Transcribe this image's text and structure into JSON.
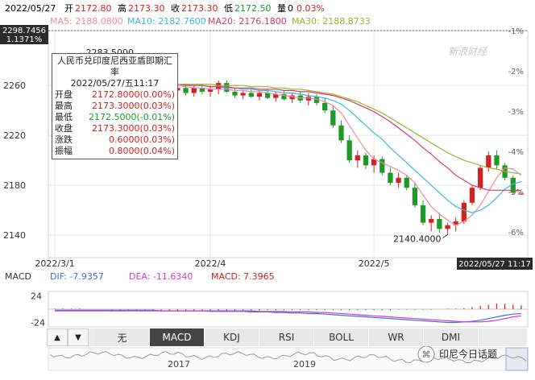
{
  "header": {
    "date": "2022/05/27",
    "open_label": "开",
    "open": "2172.80",
    "high_label": "高",
    "high": "2173.30",
    "close_label": "收",
    "close": "2173.30",
    "low_label": "低",
    "low": "2172.50",
    "volume_label": "量",
    "volume": "0",
    "change_pct": "0.03%"
  },
  "ma_legend": [
    {
      "label": "MA5: 2188.0800",
      "color": "#f08a9c"
    },
    {
      "label": "MA10: 2182.7600",
      "color": "#3cb8d8"
    },
    {
      "label": "MA20: 2176.1800",
      "color": "#d23a6e"
    },
    {
      "label": "MA30: 2188.8733",
      "color": "#9ab52a"
    }
  ],
  "crosshair": {
    "price_tag": "2298.7456",
    "pct_tag": "1.1371%",
    "date_tag": "2022/05/27 11:17"
  },
  "watermark": "新浪财经",
  "tooltip": {
    "title": "人民币兑印度尼西亚盾即期汇率",
    "datetime": "2022/05/27/五11:17",
    "rows": [
      {
        "label": "开盘",
        "value": "2172.8000(0.00%)",
        "color": "#d32020"
      },
      {
        "label": "最高",
        "value": "2173.3000(0.03%)",
        "color": "#d32020"
      },
      {
        "label": "最低",
        "value": "2172.5000(-0.01%)",
        "color": "#1f9a2a"
      },
      {
        "label": "收盘",
        "value": "2173.3000(0.03%)",
        "color": "#d32020"
      },
      {
        "label": "涨跌",
        "value": "0.6000(0.03%)",
        "color": "#d32020"
      },
      {
        "label": "振幅",
        "value": "0.8000(0.04%)",
        "color": "#d32020"
      }
    ]
  },
  "macd_header": {
    "name": "MACD",
    "dif": "DIF: -7.9357",
    "dea": "DEA: -11.6340",
    "macd": "MACD: 7.3965",
    "dif_color": "#3a6fd8",
    "dea_color": "#d838c8",
    "macd_color": "#d32020"
  },
  "tabs": {
    "up_arrow": "▲",
    "down_arrow": "▼",
    "items": [
      {
        "label": "无",
        "active": false
      },
      {
        "label": "MACD",
        "active": true
      },
      {
        "label": "KDJ",
        "active": false
      },
      {
        "label": "RSI",
        "active": false
      },
      {
        "label": "BOLL",
        "active": false
      },
      {
        "label": "WR",
        "active": false
      },
      {
        "label": "DMI",
        "active": false
      }
    ]
  },
  "overview": {
    "year_labels": [
      "2017",
      "2019"
    ],
    "brand": "印尼今日话题"
  },
  "colors": {
    "up": "#d32020",
    "down": "#1f9a2a",
    "grid": "#e6e6e6",
    "axis_text": "#333333"
  },
  "chart_data": [
    {
      "type": "candlestick",
      "title": "人民币兑印度尼西亚盾即期汇率",
      "x_tick_labels": [
        "2022/3/1",
        "2022/4",
        "2022/5"
      ],
      "y_ticks": [
        2140,
        2180,
        2220,
        2260
      ],
      "y_right_ticks": [
        "-1%",
        "-2%",
        "-3%",
        "-4%",
        "-5%",
        "-6%"
      ],
      "ylim": [
        2122,
        2304
      ],
      "annotations": [
        {
          "label": "2283.5000",
          "value": 2283.5
        },
        {
          "label": "2140.4000",
          "value": 2140.4
        }
      ],
      "grid": true,
      "candles": [
        {
          "o": 2268.0,
          "h": 2276.0,
          "l": 2262.0,
          "c": 2273.0
        },
        {
          "o": 2273.0,
          "h": 2279.0,
          "l": 2268.0,
          "c": 2271.0
        },
        {
          "o": 2271.0,
          "h": 2276.0,
          "l": 2266.0,
          "c": 2274.0
        },
        {
          "o": 2274.0,
          "h": 2283.5,
          "l": 2272.0,
          "c": 2279.0
        },
        {
          "o": 2279.0,
          "h": 2281.0,
          "l": 2270.0,
          "c": 2272.0
        },
        {
          "o": 2272.0,
          "h": 2275.0,
          "l": 2264.0,
          "c": 2266.0
        },
        {
          "o": 2266.0,
          "h": 2269.0,
          "l": 2258.0,
          "c": 2260.0
        },
        {
          "o": 2260.0,
          "h": 2266.0,
          "l": 2256.0,
          "c": 2263.0
        },
        {
          "o": 2263.0,
          "h": 2266.0,
          "l": 2256.0,
          "c": 2258.0
        },
        {
          "o": 2258.0,
          "h": 2263.0,
          "l": 2253.0,
          "c": 2261.0
        },
        {
          "o": 2261.0,
          "h": 2264.0,
          "l": 2255.0,
          "c": 2257.0
        },
        {
          "o": 2257.0,
          "h": 2262.0,
          "l": 2252.0,
          "c": 2260.0
        },
        {
          "o": 2260.0,
          "h": 2263.0,
          "l": 2255.0,
          "c": 2256.0
        },
        {
          "o": 2256.0,
          "h": 2261.0,
          "l": 2252.0,
          "c": 2259.0
        },
        {
          "o": 2259.0,
          "h": 2262.0,
          "l": 2254.0,
          "c": 2256.0
        },
        {
          "o": 2256.0,
          "h": 2261.0,
          "l": 2252.0,
          "c": 2258.0
        },
        {
          "o": 2258.0,
          "h": 2261.0,
          "l": 2252.0,
          "c": 2254.0
        },
        {
          "o": 2254.0,
          "h": 2260.0,
          "l": 2251.0,
          "c": 2258.0
        },
        {
          "o": 2258.0,
          "h": 2261.0,
          "l": 2253.0,
          "c": 2255.0
        },
        {
          "o": 2255.0,
          "h": 2260.0,
          "l": 2251.0,
          "c": 2257.0
        },
        {
          "o": 2257.0,
          "h": 2264.0,
          "l": 2253.0,
          "c": 2262.0
        },
        {
          "o": 2262.0,
          "h": 2264.0,
          "l": 2254.0,
          "c": 2255.0
        },
        {
          "o": 2255.0,
          "h": 2258.0,
          "l": 2250.0,
          "c": 2252.0
        },
        {
          "o": 2252.0,
          "h": 2256.0,
          "l": 2249.0,
          "c": 2254.0
        },
        {
          "o": 2254.0,
          "h": 2257.0,
          "l": 2250.0,
          "c": 2251.0
        },
        {
          "o": 2251.0,
          "h": 2256.0,
          "l": 2248.0,
          "c": 2254.0
        },
        {
          "o": 2254.0,
          "h": 2257.0,
          "l": 2249.0,
          "c": 2250.0
        },
        {
          "o": 2250.0,
          "h": 2255.0,
          "l": 2247.0,
          "c": 2253.0
        },
        {
          "o": 2253.0,
          "h": 2256.0,
          "l": 2248.0,
          "c": 2249.0
        },
        {
          "o": 2249.0,
          "h": 2254.0,
          "l": 2246.0,
          "c": 2252.0
        },
        {
          "o": 2252.0,
          "h": 2255.0,
          "l": 2246.0,
          "c": 2248.0
        },
        {
          "o": 2248.0,
          "h": 2254.0,
          "l": 2244.0,
          "c": 2251.0
        },
        {
          "o": 2251.0,
          "h": 2253.0,
          "l": 2244.0,
          "c": 2246.0
        },
        {
          "o": 2246.0,
          "h": 2250.0,
          "l": 2238.0,
          "c": 2240.0
        },
        {
          "o": 2240.0,
          "h": 2244.0,
          "l": 2226.0,
          "c": 2228.0
        },
        {
          "o": 2228.0,
          "h": 2232.0,
          "l": 2214.0,
          "c": 2216.0
        },
        {
          "o": 2216.0,
          "h": 2220.0,
          "l": 2198.0,
          "c": 2200.0
        },
        {
          "o": 2200.0,
          "h": 2208.0,
          "l": 2194.0,
          "c": 2204.0
        },
        {
          "o": 2204.0,
          "h": 2206.0,
          "l": 2193.0,
          "c": 2196.0
        },
        {
          "o": 2196.0,
          "h": 2204.0,
          "l": 2190.0,
          "c": 2201.0
        },
        {
          "o": 2201.0,
          "h": 2203.0,
          "l": 2188.0,
          "c": 2190.0
        },
        {
          "o": 2190.0,
          "h": 2194.0,
          "l": 2180.0,
          "c": 2182.0
        },
        {
          "o": 2182.0,
          "h": 2190.0,
          "l": 2178.0,
          "c": 2186.0
        },
        {
          "o": 2186.0,
          "h": 2188.0,
          "l": 2176.0,
          "c": 2178.0
        },
        {
          "o": 2178.0,
          "h": 2182.0,
          "l": 2162.0,
          "c": 2164.0
        },
        {
          "o": 2164.0,
          "h": 2168.0,
          "l": 2148.0,
          "c": 2150.0
        },
        {
          "o": 2150.0,
          "h": 2156.0,
          "l": 2143.0,
          "c": 2153.0
        },
        {
          "o": 2153.0,
          "h": 2158.0,
          "l": 2142.0,
          "c": 2145.0
        },
        {
          "o": 2145.0,
          "h": 2150.0,
          "l": 2140.4,
          "c": 2148.0
        },
        {
          "o": 2148.0,
          "h": 2154.0,
          "l": 2143.0,
          "c": 2151.0
        },
        {
          "o": 2151.0,
          "h": 2168.0,
          "l": 2149.0,
          "c": 2166.0
        },
        {
          "o": 2166.0,
          "h": 2180.0,
          "l": 2164.0,
          "c": 2178.0
        },
        {
          "o": 2178.0,
          "h": 2196.0,
          "l": 2176.0,
          "c": 2194.0
        },
        {
          "o": 2194.0,
          "h": 2207.0,
          "l": 2191.0,
          "c": 2204.0
        },
        {
          "o": 2204.0,
          "h": 2208.0,
          "l": 2193.0,
          "c": 2196.0
        },
        {
          "o": 2196.0,
          "h": 2198.0,
          "l": 2184.0,
          "c": 2186.0
        },
        {
          "o": 2186.0,
          "h": 2188.0,
          "l": 2172.5,
          "c": 2174.0
        },
        {
          "o": 2172.8,
          "h": 2173.3,
          "l": 2172.5,
          "c": 2173.3
        }
      ],
      "ma_series": [
        {
          "name": "MA5",
          "values": [
            2276,
            2275,
            2274,
            2273,
            2272,
            2271,
            2270,
            2269,
            2267,
            2266,
            2265,
            2264,
            2263,
            2262,
            2261,
            2260,
            2259,
            2258,
            2258,
            2257,
            2257,
            2257,
            2256,
            2256,
            2255,
            2255,
            2254,
            2253,
            2252,
            2251,
            2250,
            2250,
            2249,
            2247,
            2244,
            2238,
            2228,
            2218,
            2208,
            2201,
            2198,
            2195,
            2192,
            2188,
            2182,
            2172,
            2163,
            2157,
            2152,
            2148,
            2151,
            2156,
            2164,
            2175,
            2186,
            2194,
            2193,
            2188
          ]
        },
        {
          "name": "MA10",
          "values": [
            2272,
            2271,
            2270,
            2270,
            2269,
            2268,
            2268,
            2267,
            2266,
            2265,
            2265,
            2264,
            2263,
            2263,
            2262,
            2261,
            2261,
            2260,
            2260,
            2259,
            2259,
            2258,
            2258,
            2257,
            2257,
            2256,
            2256,
            2255,
            2254,
            2254,
            2253,
            2252,
            2251,
            2250,
            2248,
            2245,
            2240,
            2234,
            2228,
            2222,
            2217,
            2210,
            2204,
            2198,
            2192,
            2186,
            2180,
            2174,
            2168,
            2163,
            2160,
            2158,
            2160,
            2164,
            2170,
            2177,
            2181,
            2183
          ]
        },
        {
          "name": "MA20",
          "values": [
            2264,
            2264,
            2264,
            2264,
            2264,
            2264,
            2263,
            2263,
            2263,
            2262,
            2262,
            2262,
            2262,
            2261,
            2261,
            2261,
            2260,
            2260,
            2260,
            2259,
            2259,
            2259,
            2258,
            2258,
            2258,
            2257,
            2257,
            2257,
            2256,
            2256,
            2255,
            2255,
            2254,
            2253,
            2252,
            2250,
            2248,
            2245,
            2242,
            2239,
            2235,
            2231,
            2226,
            2221,
            2216,
            2210,
            2205,
            2199,
            2194,
            2188,
            2184,
            2180,
            2178,
            2176,
            2176,
            2176,
            2176,
            2176
          ]
        },
        {
          "name": "MA30",
          "values": [
            2258,
            2258,
            2258,
            2259,
            2259,
            2259,
            2260,
            2260,
            2260,
            2260,
            2260,
            2261,
            2261,
            2261,
            2261,
            2261,
            2261,
            2261,
            2261,
            2261,
            2260,
            2260,
            2260,
            2260,
            2259,
            2259,
            2259,
            2258,
            2258,
            2257,
            2257,
            2256,
            2255,
            2254,
            2253,
            2251,
            2249,
            2247,
            2244,
            2241,
            2238,
            2234,
            2230,
            2226,
            2222,
            2218,
            2214,
            2210,
            2206,
            2203,
            2200,
            2198,
            2196,
            2194,
            2193,
            2191,
            2190,
            2189
          ]
        }
      ]
    },
    {
      "type": "bar",
      "title": "MACD",
      "y_ticks": [
        24,
        -24
      ],
      "ylim": [
        -32,
        32
      ],
      "series": [
        {
          "name": "MACD",
          "values": [
            1,
            1,
            1,
            1,
            0,
            0,
            0,
            -1,
            -1,
            -1,
            -2,
            -2,
            -3,
            -3,
            -3,
            -3,
            -3,
            -3,
            -3,
            -3,
            -3,
            -3,
            -3,
            -3,
            -3,
            -3,
            -2,
            -2,
            -2,
            -2,
            -2,
            -2,
            -2,
            -2,
            -2,
            -2,
            -2,
            -2,
            -2,
            -2,
            -2,
            -2,
            -1,
            -1,
            -1,
            -1,
            -1,
            0,
            1,
            1,
            2,
            4,
            6,
            8,
            10,
            10,
            8,
            7
          ]
        },
        {
          "name": "DIF",
          "values": [
            -2,
            -2,
            -2,
            -2,
            -2,
            -2,
            -2,
            -2,
            -2,
            -2,
            -2,
            -2,
            -2,
            -3,
            -3,
            -3,
            -3,
            -3,
            -3,
            -4,
            -4,
            -4,
            -4,
            -4,
            -5,
            -5,
            -5,
            -6,
            -6,
            -7,
            -7,
            -8,
            -8,
            -9,
            -10,
            -11,
            -12,
            -13,
            -14,
            -15,
            -16,
            -17,
            -18,
            -19,
            -20,
            -21,
            -22,
            -23,
            -24,
            -24,
            -23,
            -22,
            -20,
            -17,
            -14,
            -11,
            -9,
            -8
          ]
        },
        {
          "name": "DEA",
          "values": [
            -3,
            -3,
            -3,
            -3,
            -3,
            -3,
            -3,
            -3,
            -3,
            -3,
            -3,
            -3,
            -3,
            -3,
            -3,
            -3,
            -3,
            -3,
            -3,
            -3,
            -3,
            -3,
            -3,
            -3,
            -3,
            -4,
            -4,
            -4,
            -4,
            -5,
            -5,
            -5,
            -6,
            -6,
            -7,
            -8,
            -9,
            -10,
            -11,
            -12,
            -13,
            -14,
            -15,
            -16,
            -17,
            -18,
            -19,
            -20,
            -21,
            -22,
            -23,
            -23,
            -23,
            -22,
            -20,
            -17,
            -14,
            -12
          ]
        }
      ]
    }
  ]
}
